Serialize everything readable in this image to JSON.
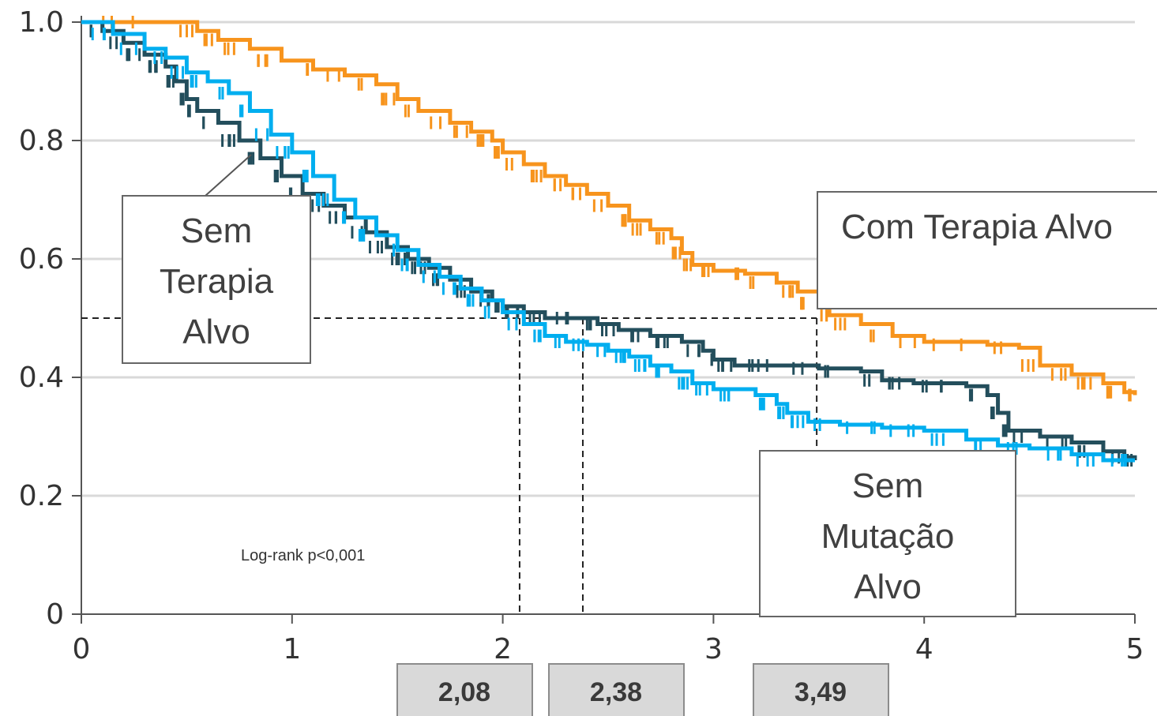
{
  "chart_data": {
    "type": "line",
    "subtype": "kaplan-meier",
    "title": "",
    "xlabel": "",
    "ylabel": "",
    "xlim": [
      0,
      5
    ],
    "ylim": [
      0,
      1
    ],
    "x_ticks": [
      "0",
      "1",
      "2",
      "3",
      "4",
      "5"
    ],
    "y_ticks": [
      "0",
      "0.2",
      "0.4",
      "0.6",
      "0.8",
      "1.0"
    ],
    "grid": "horizontal",
    "series": [
      {
        "name": "Com Terapia Alvo",
        "color": "#F7941D",
        "points": [
          [
            0,
            1.0
          ],
          [
            0.45,
            1.0
          ],
          [
            0.55,
            0.985
          ],
          [
            0.65,
            0.97
          ],
          [
            0.8,
            0.955
          ],
          [
            0.95,
            0.935
          ],
          [
            1.1,
            0.92
          ],
          [
            1.25,
            0.91
          ],
          [
            1.4,
            0.895
          ],
          [
            1.5,
            0.87
          ],
          [
            1.6,
            0.85
          ],
          [
            1.75,
            0.83
          ],
          [
            1.85,
            0.815
          ],
          [
            1.95,
            0.8
          ],
          [
            2.0,
            0.78
          ],
          [
            2.1,
            0.76
          ],
          [
            2.2,
            0.74
          ],
          [
            2.3,
            0.725
          ],
          [
            2.4,
            0.71
          ],
          [
            2.5,
            0.69
          ],
          [
            2.6,
            0.665
          ],
          [
            2.7,
            0.65
          ],
          [
            2.8,
            0.635
          ],
          [
            2.85,
            0.61
          ],
          [
            2.9,
            0.59
          ],
          [
            3.0,
            0.58
          ],
          [
            3.15,
            0.575
          ],
          [
            3.3,
            0.56
          ],
          [
            3.4,
            0.545
          ],
          [
            3.5,
            0.525
          ],
          [
            3.55,
            0.505
          ],
          [
            3.7,
            0.49
          ],
          [
            3.85,
            0.47
          ],
          [
            4.0,
            0.46
          ],
          [
            4.3,
            0.455
          ],
          [
            4.45,
            0.45
          ],
          [
            4.55,
            0.42
          ],
          [
            4.7,
            0.405
          ],
          [
            4.85,
            0.39
          ],
          [
            4.95,
            0.375
          ],
          [
            5.0,
            0.37
          ]
        ],
        "box_label": [
          "Com Terapia Alvo"
        ]
      },
      {
        "name": "Sem Terapia Alvo",
        "color": "#234E5C",
        "points": [
          [
            0,
            1.0
          ],
          [
            0.1,
            0.985
          ],
          [
            0.2,
            0.965
          ],
          [
            0.3,
            0.945
          ],
          [
            0.4,
            0.925
          ],
          [
            0.45,
            0.9
          ],
          [
            0.5,
            0.87
          ],
          [
            0.55,
            0.85
          ],
          [
            0.65,
            0.83
          ],
          [
            0.75,
            0.8
          ],
          [
            0.85,
            0.77
          ],
          [
            0.95,
            0.74
          ],
          [
            1.05,
            0.71
          ],
          [
            1.15,
            0.69
          ],
          [
            1.25,
            0.67
          ],
          [
            1.35,
            0.645
          ],
          [
            1.45,
            0.62
          ],
          [
            1.55,
            0.6
          ],
          [
            1.65,
            0.585
          ],
          [
            1.75,
            0.565
          ],
          [
            1.85,
            0.545
          ],
          [
            1.95,
            0.53
          ],
          [
            2.0,
            0.52
          ],
          [
            2.1,
            0.51
          ],
          [
            2.2,
            0.5
          ],
          [
            2.35,
            0.5
          ],
          [
            2.45,
            0.49
          ],
          [
            2.55,
            0.48
          ],
          [
            2.7,
            0.47
          ],
          [
            2.85,
            0.46
          ],
          [
            2.95,
            0.445
          ],
          [
            3.0,
            0.43
          ],
          [
            3.1,
            0.42
          ],
          [
            3.3,
            0.42
          ],
          [
            3.5,
            0.415
          ],
          [
            3.7,
            0.41
          ],
          [
            3.8,
            0.395
          ],
          [
            3.95,
            0.39
          ],
          [
            4.2,
            0.385
          ],
          [
            4.3,
            0.37
          ],
          [
            4.35,
            0.34
          ],
          [
            4.4,
            0.31
          ],
          [
            4.55,
            0.3
          ],
          [
            4.7,
            0.29
          ],
          [
            4.85,
            0.275
          ],
          [
            4.95,
            0.265
          ],
          [
            5.0,
            0.26
          ]
        ],
        "box_label": [
          "Sem",
          "Terapia",
          "Alvo"
        ]
      },
      {
        "name": "Sem Mutação Alvo",
        "color": "#00AEEF",
        "points": [
          [
            0,
            1.0
          ],
          [
            0.15,
            0.98
          ],
          [
            0.3,
            0.955
          ],
          [
            0.4,
            0.94
          ],
          [
            0.5,
            0.915
          ],
          [
            0.6,
            0.9
          ],
          [
            0.7,
            0.88
          ],
          [
            0.8,
            0.85
          ],
          [
            0.9,
            0.81
          ],
          [
            1.0,
            0.78
          ],
          [
            1.1,
            0.74
          ],
          [
            1.2,
            0.7
          ],
          [
            1.3,
            0.67
          ],
          [
            1.4,
            0.64
          ],
          [
            1.5,
            0.615
          ],
          [
            1.6,
            0.59
          ],
          [
            1.7,
            0.57
          ],
          [
            1.8,
            0.55
          ],
          [
            1.9,
            0.53
          ],
          [
            2.0,
            0.51
          ],
          [
            2.1,
            0.49
          ],
          [
            2.2,
            0.47
          ],
          [
            2.3,
            0.46
          ],
          [
            2.4,
            0.455
          ],
          [
            2.5,
            0.445
          ],
          [
            2.6,
            0.435
          ],
          [
            2.7,
            0.42
          ],
          [
            2.8,
            0.41
          ],
          [
            2.9,
            0.39
          ],
          [
            3.0,
            0.38
          ],
          [
            3.2,
            0.37
          ],
          [
            3.3,
            0.355
          ],
          [
            3.35,
            0.34
          ],
          [
            3.45,
            0.325
          ],
          [
            3.6,
            0.32
          ],
          [
            3.8,
            0.315
          ],
          [
            4.0,
            0.31
          ],
          [
            4.2,
            0.295
          ],
          [
            4.35,
            0.285
          ],
          [
            4.5,
            0.28
          ],
          [
            4.7,
            0.27
          ],
          [
            4.85,
            0.26
          ],
          [
            5.0,
            0.26
          ]
        ],
        "box_label": [
          "Sem",
          "Mutação",
          "Alvo"
        ]
      }
    ],
    "median_reference_y": 0.5,
    "medians": [
      {
        "x": 2.08,
        "label": "2,08"
      },
      {
        "x": 2.38,
        "label": "2,38"
      },
      {
        "x": 3.49,
        "label": "3,49"
      }
    ],
    "annotations": [
      {
        "text": "Log-rank p<0,001"
      }
    ]
  }
}
